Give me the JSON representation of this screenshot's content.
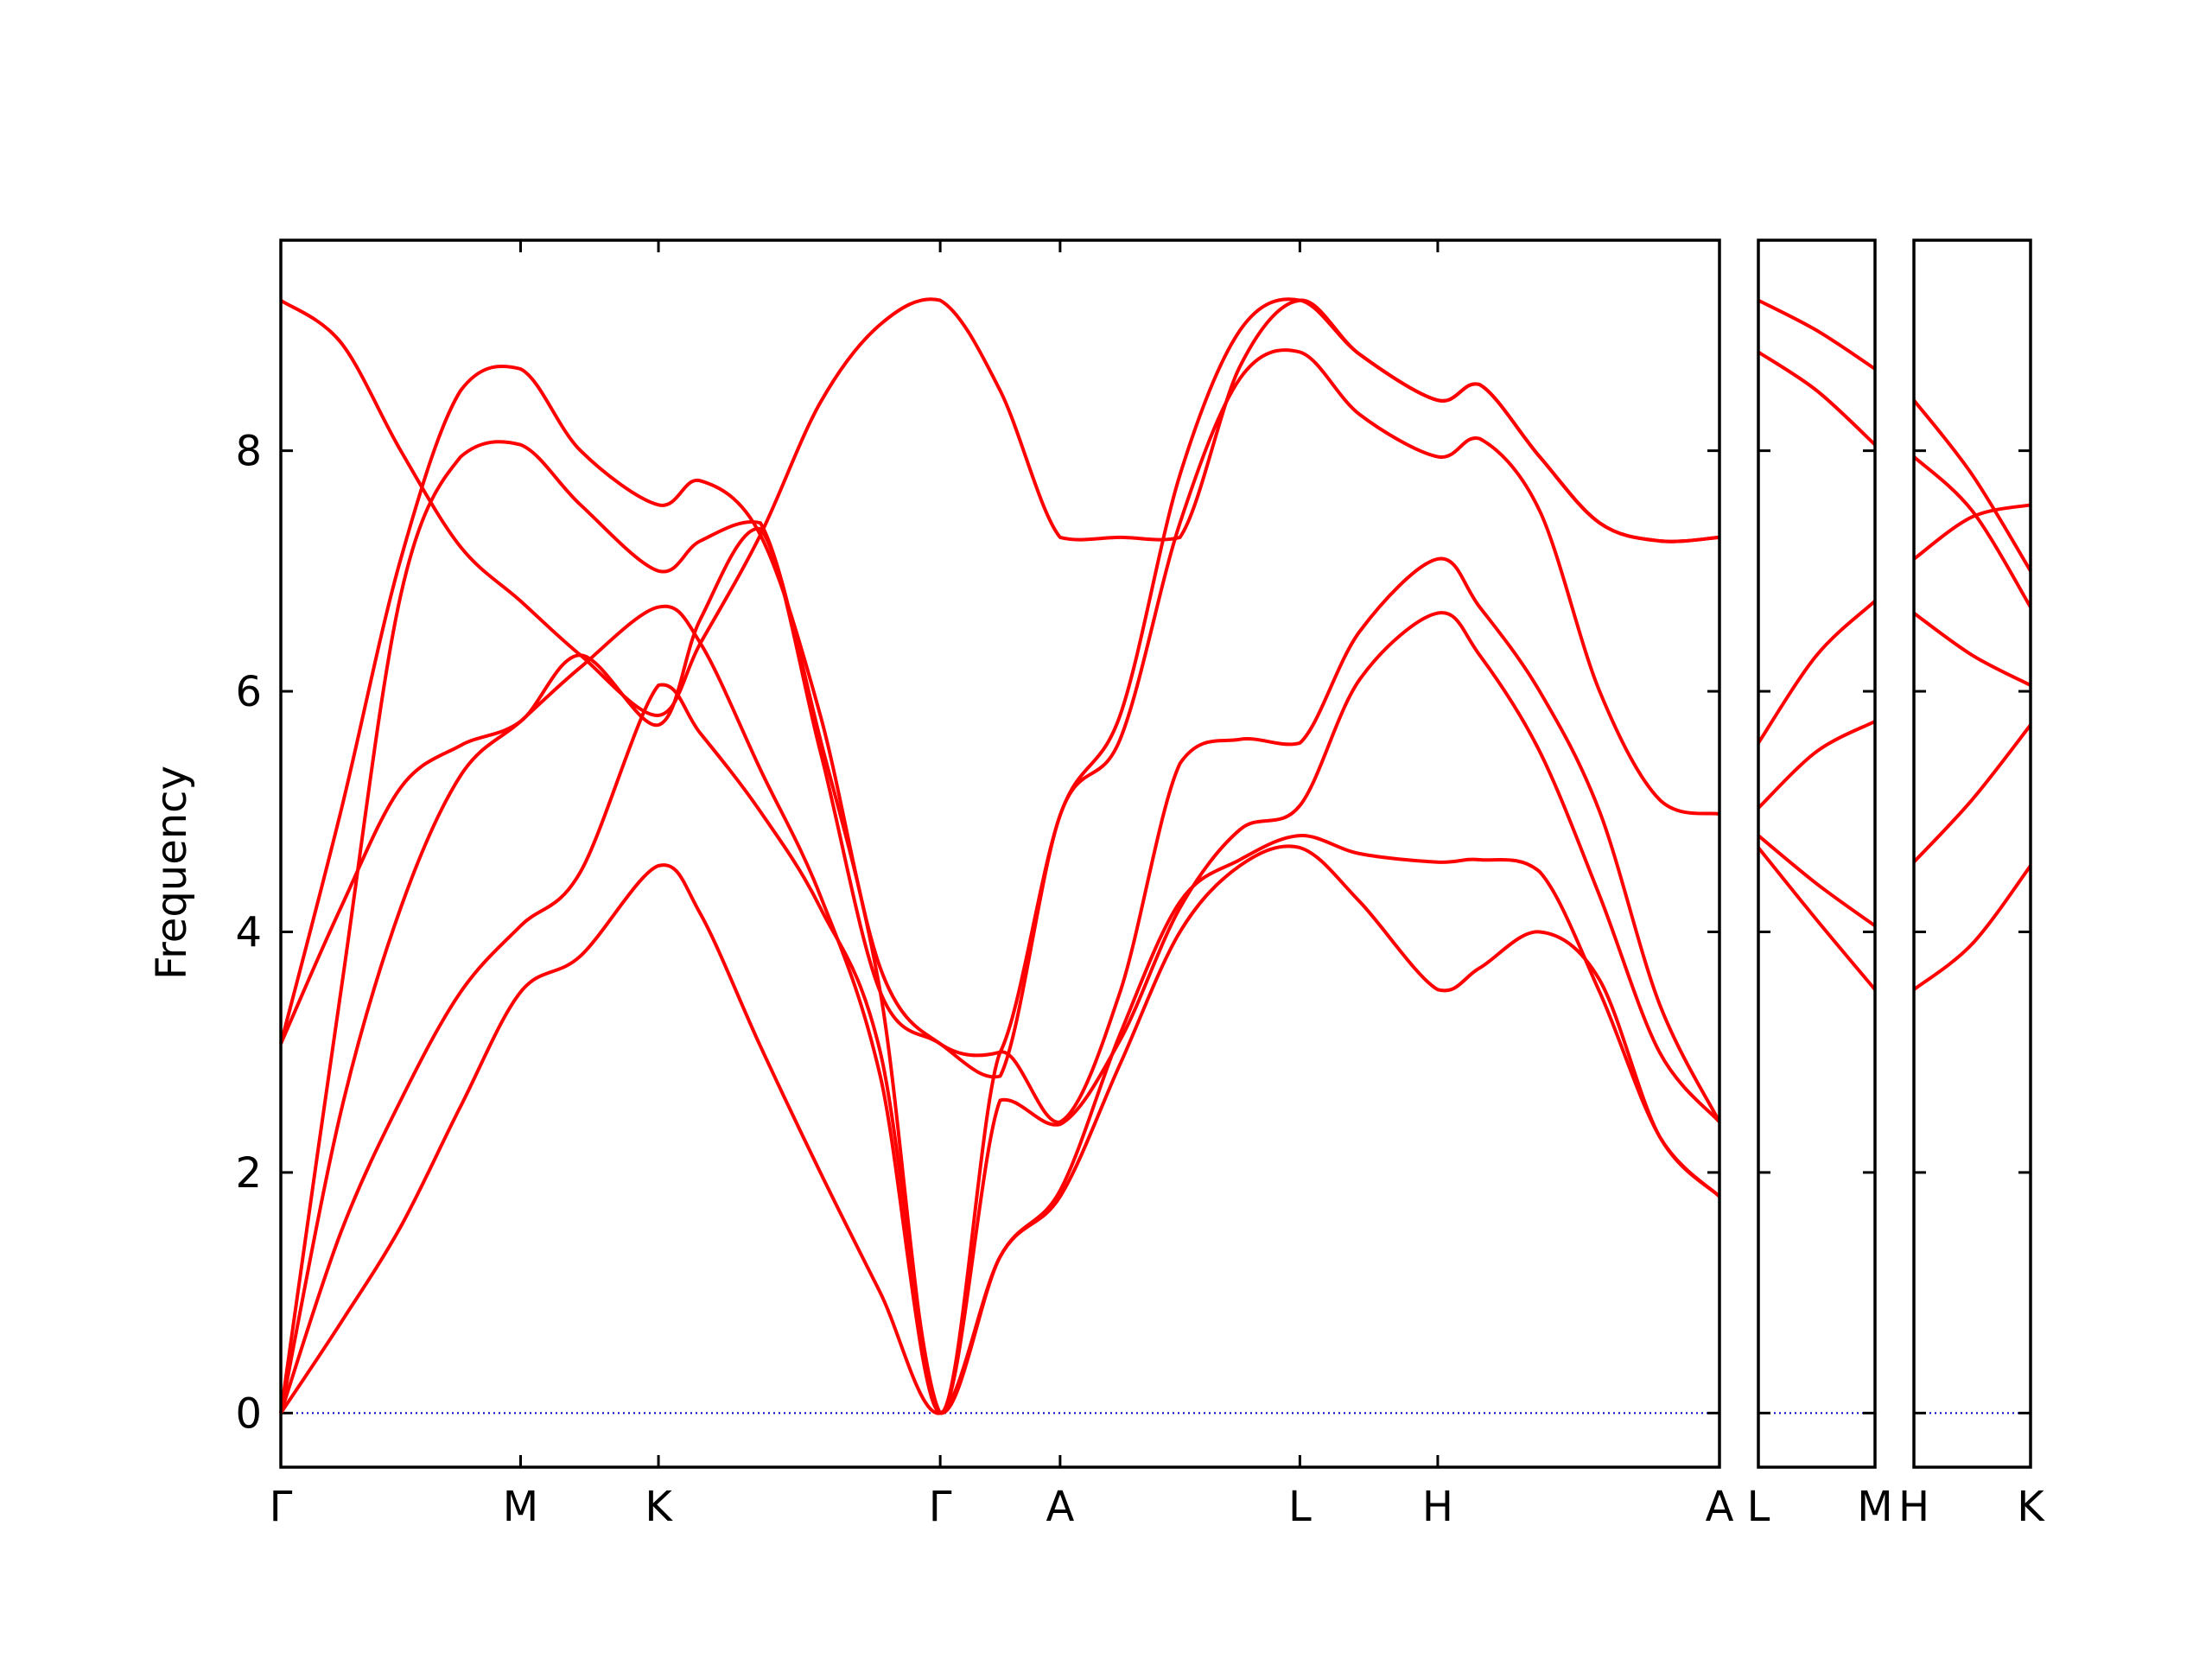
{
  "chart_data": {
    "type": "line",
    "ylabel": "Frequency",
    "ylim": [
      -0.45,
      9.75
    ],
    "y_ticks": [
      "0",
      "2",
      "4",
      "6",
      "8"
    ],
    "colors": {
      "band": "#ff0000",
      "zero_line": "#0000cc",
      "axes": "#000000"
    },
    "panels": [
      {
        "id": "p1",
        "x_positions": [
          0,
          2,
          3.15,
          5.5,
          6.5,
          8.5,
          9.65,
          12
        ],
        "x_labels": [
          "Γ",
          "M",
          "K",
          "Γ",
          "A",
          "L",
          "H",
          "A"
        ],
        "bands": [
          [
            [
              0,
              0
            ],
            [
              0.5,
              0.75
            ],
            [
              1,
              1.55
            ],
            [
              1.5,
              2.55
            ],
            [
              2,
              3.5
            ],
            [
              2.5,
              3.8
            ],
            [
              3.15,
              4.55
            ],
            [
              3.5,
              4.15
            ],
            [
              4,
              3.05
            ],
            [
              4.5,
              2.0
            ],
            [
              5,
              1.0
            ],
            [
              5.5,
              0
            ],
            [
              6,
              1.3
            ],
            [
              6.5,
              1.8
            ],
            [
              7,
              2.9
            ],
            [
              7.5,
              4.0
            ],
            [
              8,
              4.55
            ],
            [
              8.5,
              4.7
            ],
            [
              9,
              4.25
            ],
            [
              9.65,
              3.52
            ],
            [
              10,
              3.7
            ],
            [
              10.5,
              4.0
            ],
            [
              11,
              3.6
            ],
            [
              11.5,
              2.3
            ],
            [
              12,
              1.8
            ]
          ],
          [
            [
              0,
              0
            ],
            [
              0.5,
              1.5
            ],
            [
              1,
              2.6
            ],
            [
              1.5,
              3.5
            ],
            [
              2,
              4.05
            ],
            [
              2.5,
              4.5
            ],
            [
              3.15,
              6.05
            ],
            [
              3.5,
              5.65
            ],
            [
              4,
              5.0
            ],
            [
              4.5,
              4.2
            ],
            [
              5,
              3.0
            ],
            [
              5.5,
              0
            ],
            [
              6,
              1.3
            ],
            [
              6.5,
              1.85
            ],
            [
              7,
              3.15
            ],
            [
              7.5,
              4.25
            ],
            [
              8,
              4.6
            ],
            [
              8.5,
              4.8
            ],
            [
              9,
              4.65
            ],
            [
              9.65,
              4.58
            ],
            [
              10,
              4.6
            ],
            [
              10.5,
              4.5
            ],
            [
              11,
              3.5
            ],
            [
              11.5,
              2.3
            ],
            [
              12,
              1.8
            ]
          ],
          [
            [
              0,
              0
            ],
            [
              0.5,
              2.5
            ],
            [
              1,
              4.2
            ],
            [
              1.5,
              5.3
            ],
            [
              2,
              5.75
            ],
            [
              2.5,
              6.2
            ],
            [
              3.15,
              6.7
            ],
            [
              3.5,
              6.4
            ],
            [
              4,
              5.35
            ],
            [
              4.5,
              4.3
            ],
            [
              5,
              2.8
            ],
            [
              5.5,
              0
            ],
            [
              6,
              2.6
            ],
            [
              6.5,
              2.4
            ],
            [
              7,
              3.1
            ],
            [
              7.5,
              4.2
            ],
            [
              8,
              4.85
            ],
            [
              8.5,
              5.05
            ],
            [
              9,
              6.1
            ],
            [
              9.65,
              6.65
            ],
            [
              10,
              6.3
            ],
            [
              10.5,
              5.5
            ],
            [
              11,
              4.3
            ],
            [
              11.5,
              3.0
            ],
            [
              12,
              2.42
            ]
          ],
          [
            [
              0,
              0
            ],
            [
              0.5,
              3.5
            ],
            [
              1,
              6.8
            ],
            [
              1.5,
              7.95
            ],
            [
              2,
              8.05
            ],
            [
              2.5,
              7.55
            ],
            [
              3.15,
              7.0
            ],
            [
              3.5,
              7.25
            ],
            [
              4,
              7.4
            ],
            [
              4.5,
              5.6
            ],
            [
              5,
              3.5
            ],
            [
              5.5,
              0
            ],
            [
              6,
              3.0
            ],
            [
              6.5,
              2.42
            ],
            [
              7,
              3.5
            ],
            [
              7.5,
              5.4
            ],
            [
              8,
              5.6
            ],
            [
              8.5,
              5.57
            ],
            [
              9,
              6.5
            ],
            [
              9.65,
              7.1
            ],
            [
              10,
              6.7
            ],
            [
              10.5,
              6.0
            ],
            [
              11,
              5.0
            ],
            [
              11.5,
              3.4
            ],
            [
              12,
              2.42
            ]
          ],
          [
            [
              0,
              3.07
            ],
            [
              0.5,
              4.2
            ],
            [
              1,
              5.2
            ],
            [
              1.5,
              5.55
            ],
            [
              2,
              5.75
            ],
            [
              2.5,
              6.3
            ],
            [
              3.15,
              5.72
            ],
            [
              3.5,
              6.6
            ],
            [
              4,
              7.35
            ],
            [
              4.5,
              5.5
            ],
            [
              5,
              3.5
            ],
            [
              5.5,
              3.07
            ],
            [
              6,
              2.8
            ],
            [
              6.5,
              4.97
            ],
            [
              7,
              5.6
            ],
            [
              7.5,
              7.4
            ],
            [
              8,
              8.6
            ],
            [
              8.5,
              8.82
            ],
            [
              9,
              8.3
            ],
            [
              9.65,
              7.95
            ],
            [
              10,
              8.1
            ],
            [
              10.5,
              7.5
            ],
            [
              11,
              6.0
            ],
            [
              11.5,
              5.1
            ],
            [
              12,
              4.98
            ]
          ],
          [
            [
              0,
              3.07
            ],
            [
              0.5,
              5.0
            ],
            [
              1,
              7.1
            ],
            [
              1.5,
              8.5
            ],
            [
              2,
              8.68
            ],
            [
              2.5,
              8.0
            ],
            [
              3.15,
              7.55
            ],
            [
              3.5,
              7.75
            ],
            [
              4,
              7.3
            ],
            [
              4.5,
              5.8
            ],
            [
              5,
              3.7
            ],
            [
              5.5,
              3.07
            ],
            [
              6,
              3.0
            ],
            [
              6.5,
              4.97
            ],
            [
              7,
              5.8
            ],
            [
              7.5,
              7.8
            ],
            [
              8,
              9.0
            ],
            [
              8.5,
              9.25
            ],
            [
              9,
              8.8
            ],
            [
              9.65,
              8.42
            ],
            [
              10,
              8.55
            ],
            [
              10.5,
              7.95
            ],
            [
              11,
              7.4
            ],
            [
              11.5,
              7.25
            ],
            [
              12,
              7.28
            ]
          ],
          [
            [
              0,
              9.25
            ],
            [
              0.5,
              8.9
            ],
            [
              1,
              8.0
            ],
            [
              1.5,
              7.2
            ],
            [
              2,
              6.75
            ],
            [
              2.5,
              6.3
            ],
            [
              3.15,
              5.8
            ],
            [
              3.5,
              6.4
            ],
            [
              4,
              7.3
            ],
            [
              4.5,
              8.4
            ],
            [
              5,
              9.05
            ],
            [
              5.5,
              9.25
            ],
            [
              6,
              8.5
            ],
            [
              6.5,
              7.28
            ],
            [
              7,
              7.28
            ],
            [
              7.5,
              7.28
            ],
            [
              8,
              8.7
            ],
            [
              8.5,
              9.25
            ],
            [
              9,
              8.8
            ],
            [
              9.65,
              8.42
            ],
            [
              10,
              8.55
            ],
            [
              10.5,
              7.95
            ],
            [
              11,
              7.4
            ],
            [
              11.5,
              7.25
            ],
            [
              12,
              7.28
            ]
          ]
        ]
      },
      {
        "id": "p2",
        "x_positions": [
          0,
          1
        ],
        "x_labels": [
          "L",
          "M"
        ],
        "bands": [
          [
            [
              0,
              4.7
            ],
            [
              0.5,
              4.1
            ],
            [
              1,
              3.52
            ]
          ],
          [
            [
              0,
              4.8
            ],
            [
              0.5,
              4.4
            ],
            [
              1,
              4.05
            ]
          ],
          [
            [
              0,
              5.03
            ],
            [
              0.5,
              5.5
            ],
            [
              1,
              5.75
            ]
          ],
          [
            [
              0,
              5.57
            ],
            [
              0.5,
              6.3
            ],
            [
              1,
              6.75
            ]
          ],
          [
            [
              0,
              8.82
            ],
            [
              0.5,
              8.5
            ],
            [
              1,
              8.05
            ]
          ],
          [
            [
              0,
              9.25
            ],
            [
              0.5,
              9.0
            ],
            [
              1,
              8.68
            ]
          ]
        ]
      },
      {
        "id": "p3",
        "x_positions": [
          0,
          1
        ],
        "x_labels": [
          "H",
          "K"
        ],
        "bands": [
          [
            [
              0,
              3.52
            ],
            [
              0.5,
              3.9
            ],
            [
              1,
              4.55
            ]
          ],
          [
            [
              0,
              4.58
            ],
            [
              0.5,
              5.1
            ],
            [
              1,
              5.72
            ]
          ],
          [
            [
              0,
              6.65
            ],
            [
              0.5,
              6.3
            ],
            [
              1,
              6.05
            ]
          ],
          [
            [
              0,
              7.1
            ],
            [
              0.5,
              7.45
            ],
            [
              1,
              7.55
            ]
          ],
          [
            [
              0,
              7.95
            ],
            [
              0.5,
              7.5
            ],
            [
              1,
              6.7
            ]
          ],
          [
            [
              0,
              8.42
            ],
            [
              0.5,
              7.8
            ],
            [
              1,
              7.0
            ]
          ]
        ]
      }
    ]
  }
}
